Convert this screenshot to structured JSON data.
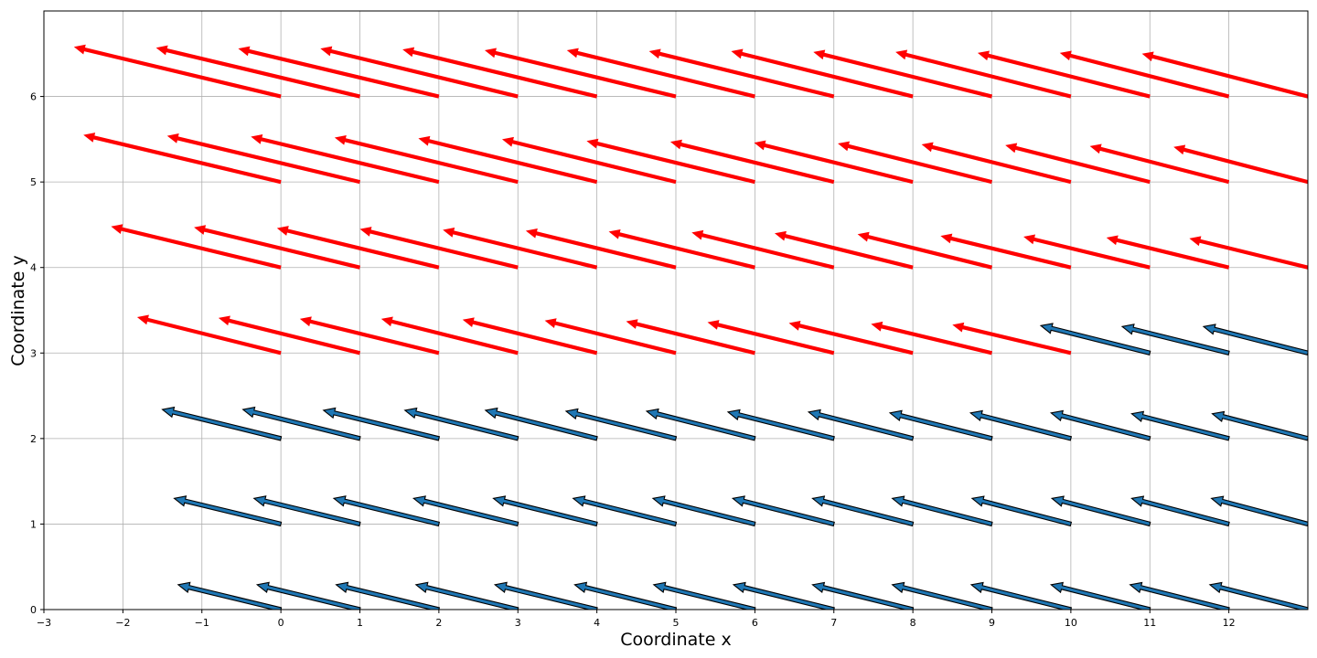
{
  "chart_data": {
    "type": "quiver",
    "xlabel": "Coordinate x",
    "ylabel": "Coordinate y",
    "xlim": [
      -3,
      13
    ],
    "ylim": [
      0,
      7
    ],
    "x_ticks": [
      -3,
      -2,
      -1,
      0,
      1,
      2,
      3,
      4,
      5,
      6,
      7,
      8,
      9,
      10,
      11,
      12
    ],
    "y_ticks": [
      0,
      1,
      2,
      3,
      4,
      5,
      6
    ],
    "grid": true,
    "colors": {
      "red_series": "#ff0000",
      "blue_series": "#1f77b4",
      "blue_edge": "#000000"
    },
    "series": [
      {
        "color_key": "blue_series",
        "rows": [
          {
            "y": 0,
            "x": [
              0,
              1,
              2,
              3,
              4,
              5,
              6,
              7,
              8,
              9,
              10,
              11,
              12,
              13
            ],
            "u": [
              -1.3,
              -1.3,
              -1.3,
              -1.29,
              -1.29,
              -1.28,
              -1.28,
              -1.27,
              -1.27,
              -1.26,
              -1.26,
              -1.25,
              -1.25,
              -1.24
            ],
            "v": [
              0.29,
              0.29,
              0.29,
              0.29,
              0.29,
              0.29,
              0.29,
              0.29,
              0.29,
              0.29,
              0.29,
              0.29,
              0.29,
              0.29
            ]
          },
          {
            "y": 1,
            "x": [
              0,
              1,
              2,
              3,
              4,
              5,
              6,
              7,
              8,
              9,
              10,
              11,
              12,
              13
            ],
            "u": [
              -1.35,
              -1.34,
              -1.33,
              -1.32,
              -1.31,
              -1.3,
              -1.29,
              -1.28,
              -1.27,
              -1.26,
              -1.25,
              -1.24,
              -1.23,
              -1.22
            ],
            "v": [
              0.3,
              0.3,
              0.3,
              0.3,
              0.3,
              0.3,
              0.3,
              0.3,
              0.3,
              0.3,
              0.3,
              0.3,
              0.3,
              0.3
            ]
          },
          {
            "y": 2,
            "x": [
              0,
              1,
              2,
              3,
              4,
              5,
              6,
              7,
              8,
              9,
              10,
              11,
              12,
              13
            ],
            "u": [
              -1.5,
              -1.48,
              -1.46,
              -1.43,
              -1.41,
              -1.39,
              -1.37,
              -1.34,
              -1.32,
              -1.29,
              -1.27,
              -1.25,
              -1.23,
              -1.21
            ],
            "v": [
              0.34,
              0.34,
              0.33,
              0.33,
              0.33,
              0.32,
              0.32,
              0.31,
              0.31,
              0.3,
              0.3,
              0.3,
              0.29,
              0.29
            ]
          },
          {
            "y": 3,
            "x": [
              11,
              12,
              13
            ],
            "u": [
              -1.38,
              -1.35,
              -1.32
            ],
            "v": [
              0.32,
              0.31,
              0.31
            ]
          }
        ]
      },
      {
        "color_key": "red_series",
        "rows": [
          {
            "y": 3,
            "x": [
              0,
              1,
              2,
              3,
              4,
              5,
              6,
              7,
              8,
              9,
              10
            ],
            "u": [
              -1.82,
              -1.79,
              -1.76,
              -1.73,
              -1.7,
              -1.66,
              -1.63,
              -1.6,
              -1.57,
              -1.53,
              -1.5
            ],
            "v": [
              0.42,
              0.41,
              0.4,
              0.4,
              0.39,
              0.38,
              0.37,
              0.36,
              0.35,
              0.34,
              0.33
            ]
          },
          {
            "y": 4,
            "x": [
              0,
              1,
              2,
              3,
              4,
              5,
              6,
              7,
              8,
              9,
              10,
              11,
              12,
              13
            ],
            "u": [
              -2.15,
              -2.1,
              -2.05,
              -2.0,
              -1.95,
              -1.9,
              -1.85,
              -1.8,
              -1.75,
              -1.7,
              -1.65,
              -1.6,
              -1.55,
              -1.5
            ],
            "v": [
              0.48,
              0.47,
              0.46,
              0.45,
              0.44,
              0.43,
              0.42,
              0.41,
              0.4,
              0.39,
              0.37,
              0.36,
              0.35,
              0.34
            ]
          },
          {
            "y": 5,
            "x": [
              0,
              1,
              2,
              3,
              4,
              5,
              6,
              7,
              8,
              9,
              10,
              11,
              12,
              13
            ],
            "u": [
              -2.5,
              -2.44,
              -2.38,
              -2.32,
              -2.26,
              -2.2,
              -2.13,
              -2.07,
              -2.01,
              -1.95,
              -1.89,
              -1.83,
              -1.76,
              -1.7
            ],
            "v": [
              0.55,
              0.54,
              0.53,
              0.52,
              0.51,
              0.5,
              0.48,
              0.47,
              0.46,
              0.45,
              0.44,
              0.43,
              0.42,
              0.41
            ]
          },
          {
            "y": 6,
            "x": [
              0,
              1,
              2,
              3,
              4,
              5,
              6,
              7,
              8,
              9,
              10,
              11,
              12,
              13
            ],
            "u": [
              -2.62,
              -2.58,
              -2.54,
              -2.5,
              -2.46,
              -2.42,
              -2.38,
              -2.34,
              -2.3,
              -2.26,
              -2.22,
              -2.18,
              -2.14,
              -2.1
            ],
            "v": [
              0.58,
              0.57,
              0.56,
              0.56,
              0.55,
              0.54,
              0.54,
              0.53,
              0.53,
              0.52,
              0.52,
              0.51,
              0.51,
              0.5
            ]
          }
        ]
      }
    ]
  }
}
